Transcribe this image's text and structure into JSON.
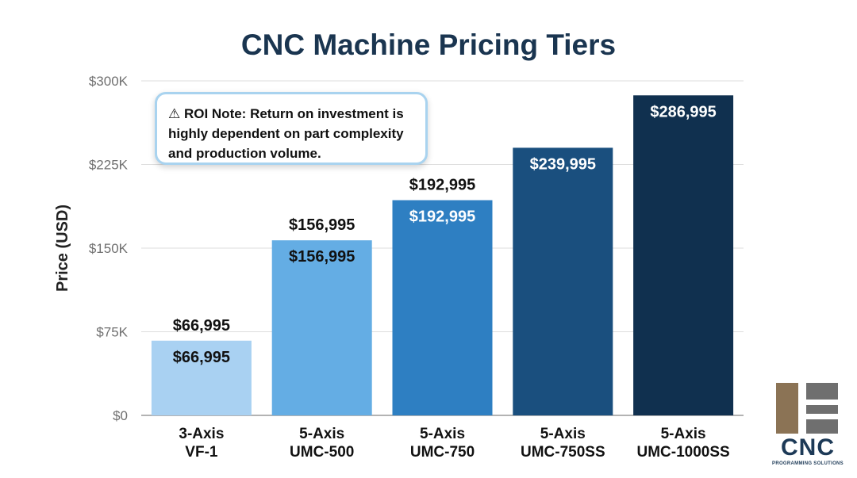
{
  "chart_data": {
    "type": "bar",
    "title": "CNC Machine Pricing Tiers",
    "ylabel": "Price (USD)",
    "xlabel": "",
    "ylim": [
      0,
      300000
    ],
    "yticks": [
      {
        "value": 0,
        "label": "$0"
      },
      {
        "value": 75000,
        "label": "$75K"
      },
      {
        "value": 150000,
        "label": "$150K"
      },
      {
        "value": 225000,
        "label": "$225K"
      },
      {
        "value": 300000,
        "label": "$300K"
      }
    ],
    "grid": true,
    "bars": [
      {
        "line1": "3-Axis",
        "line2": "VF-1",
        "value": 66995,
        "label": "$66,995",
        "outside_label": true,
        "color": "#a9d1f2",
        "label_color": "#111111"
      },
      {
        "line1": "5-Axis",
        "line2": "UMC-500",
        "value": 156995,
        "label": "$156,995",
        "outside_label": true,
        "color": "#64ade4",
        "label_color": "#111111"
      },
      {
        "line1": "5-Axis",
        "line2": "UMC-750",
        "value": 192995,
        "label": "$192,995",
        "outside_label": true,
        "color": "#2e7fc2",
        "label_color": "#ffffff"
      },
      {
        "line1": "5-Axis",
        "line2": "UMC-750SS",
        "value": 239995,
        "label": "$239,995",
        "outside_label": false,
        "color": "#1a4f7e",
        "label_color": "#ffffff"
      },
      {
        "line1": "5-Axis",
        "line2": "UMC-1000SS",
        "value": 286995,
        "label": "$286,995",
        "outside_label": false,
        "color": "#10304f",
        "label_color": "#ffffff"
      }
    ]
  },
  "note": {
    "icon": "warning-icon",
    "text": "⚠ ROI Note: Return on investment is highly dependent on part complexity and production volume."
  },
  "logo": {
    "text": "CNC",
    "subtext": "PROGRAMMING SOLUTIONS",
    "colors": {
      "brown": "#8b7355",
      "gray": "#6f6f6f",
      "navy": "#1d3a57"
    }
  }
}
